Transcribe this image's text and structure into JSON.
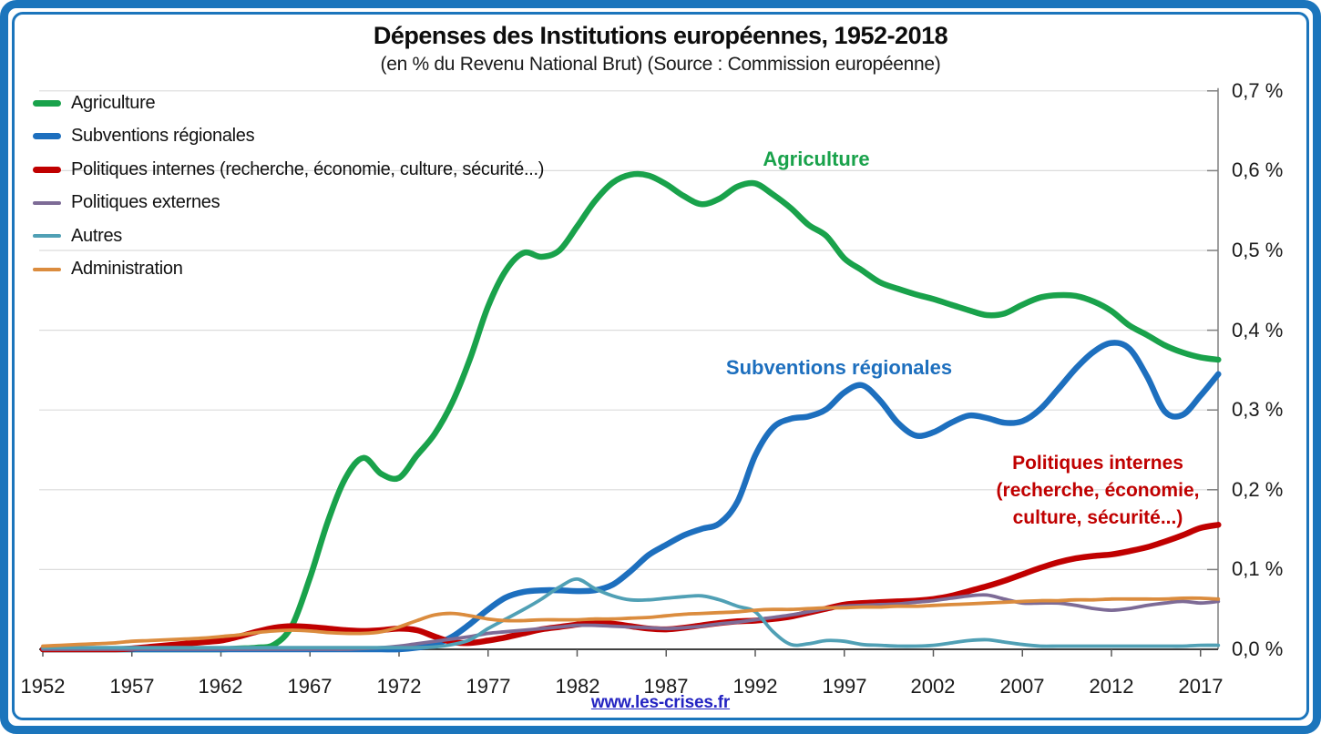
{
  "frame": {
    "border_color": "#1B75BC"
  },
  "header": {
    "title": "Dépenses des Institutions européennes, 1952-2018",
    "subtitle": "(en % du Revenu National Brut) (Source : Commission européenne)"
  },
  "legend": {
    "items": [
      {
        "label": "Agriculture",
        "color": "#19A24B",
        "thick": true
      },
      {
        "label": "Subventions régionales",
        "color": "#1D6FBE",
        "thick": true
      },
      {
        "label": "Politiques internes (recherche, économie, culture, sécurité...)",
        "color": "#C00000",
        "thick": true
      },
      {
        "label": "Politiques externes",
        "color": "#7D6B96",
        "thick": false
      },
      {
        "label": "Autres",
        "color": "#50A0B5",
        "thick": false
      },
      {
        "label": "Administration",
        "color": "#DB8C3E",
        "thick": false
      }
    ]
  },
  "annotations": {
    "agriculture": "Agriculture",
    "subventions": "Subventions régionales",
    "internes_line1": "Politiques internes",
    "internes_line2": "(recherche, économie,",
    "internes_line3": "culture, sécurité...)"
  },
  "footer": {
    "link_text": "www.les-crises.fr"
  },
  "chart_data": {
    "type": "line",
    "title": "Dépenses des Institutions européennes, 1952-2018",
    "subtitle": "(en % du Revenu National Brut) (Source : Commission européenne)",
    "xlabel": "",
    "ylabel": "% du Revenu National Brut",
    "ylim": [
      0,
      0.7
    ],
    "grid": true,
    "legend_position": "top-left",
    "y_axis_side": "right",
    "x_tick_labels": [
      "1952",
      "1957",
      "1962",
      "1967",
      "1972",
      "1977",
      "1982",
      "1987",
      "1992",
      "1997",
      "2002",
      "2007",
      "2012",
      "2017"
    ],
    "y_tick_labels": [
      "0,0 %",
      "0,1 %",
      "0,2 %",
      "0,3 %",
      "0,4 %",
      "0,5 %",
      "0,6 %",
      "0,7 %"
    ],
    "x": [
      1952,
      1953,
      1954,
      1955,
      1956,
      1957,
      1958,
      1959,
      1960,
      1961,
      1962,
      1963,
      1964,
      1965,
      1966,
      1967,
      1968,
      1969,
      1970,
      1971,
      1972,
      1973,
      1974,
      1975,
      1976,
      1977,
      1978,
      1979,
      1980,
      1981,
      1982,
      1983,
      1984,
      1985,
      1986,
      1987,
      1988,
      1989,
      1990,
      1991,
      1992,
      1993,
      1994,
      1995,
      1996,
      1997,
      1998,
      1999,
      2000,
      2001,
      2002,
      2003,
      2004,
      2005,
      2006,
      2007,
      2008,
      2009,
      2010,
      2011,
      2012,
      2013,
      2014,
      2015,
      2016,
      2017,
      2018
    ],
    "series": [
      {
        "id": "agriculture",
        "name": "Agriculture",
        "color": "#19A24B",
        "width": 6.5,
        "values": [
          0,
          0,
          0,
          0,
          0,
          0,
          0,
          0,
          0,
          0,
          0,
          0.001,
          0.002,
          0.006,
          0.03,
          0.09,
          0.16,
          0.215,
          0.24,
          0.22,
          0.215,
          0.243,
          0.27,
          0.31,
          0.365,
          0.43,
          0.475,
          0.497,
          0.492,
          0.5,
          0.53,
          0.562,
          0.585,
          0.595,
          0.594,
          0.583,
          0.568,
          0.558,
          0.565,
          0.58,
          0.584,
          0.57,
          0.553,
          0.532,
          0.518,
          0.49,
          0.475,
          0.46,
          0.452,
          0.445,
          0.439,
          0.432,
          0.425,
          0.419,
          0.421,
          0.432,
          0.441,
          0.444,
          0.443,
          0.436,
          0.424,
          0.406,
          0.394,
          0.381,
          0.372,
          0.366,
          0.363
        ]
      },
      {
        "id": "subventions-regionales",
        "name": "Subventions régionales",
        "color": "#1D6FBE",
        "width": 6.5,
        "values": [
          0,
          0,
          0,
          0,
          0,
          0,
          0,
          0,
          0,
          0,
          0,
          0,
          0,
          0,
          0,
          0,
          0,
          0,
          0,
          0,
          0,
          0.002,
          0.006,
          0.016,
          0.032,
          0.05,
          0.065,
          0.072,
          0.074,
          0.074,
          0.073,
          0.074,
          0.081,
          0.098,
          0.118,
          0.131,
          0.143,
          0.151,
          0.158,
          0.185,
          0.243,
          0.278,
          0.289,
          0.292,
          0.301,
          0.322,
          0.331,
          0.312,
          0.284,
          0.268,
          0.272,
          0.284,
          0.293,
          0.29,
          0.284,
          0.286,
          0.301,
          0.326,
          0.352,
          0.373,
          0.384,
          0.377,
          0.342,
          0.298,
          0.294,
          0.318,
          0.345
        ]
      },
      {
        "id": "politiques-internes",
        "name": "Politiques internes (recherche, économie, culture, sécurité...)",
        "color": "#C00000",
        "width": 6.5,
        "values": [
          0,
          0,
          0,
          0,
          0,
          0.001,
          0.003,
          0.005,
          0.007,
          0.009,
          0.011,
          0.016,
          0.022,
          0.027,
          0.029,
          0.028,
          0.026,
          0.024,
          0.023,
          0.024,
          0.026,
          0.024,
          0.016,
          0.009,
          0.008,
          0.011,
          0.015,
          0.02,
          0.025,
          0.028,
          0.031,
          0.033,
          0.032,
          0.029,
          0.026,
          0.025,
          0.027,
          0.03,
          0.033,
          0.035,
          0.036,
          0.038,
          0.041,
          0.046,
          0.051,
          0.056,
          0.058,
          0.059,
          0.06,
          0.061,
          0.063,
          0.067,
          0.073,
          0.079,
          0.086,
          0.094,
          0.102,
          0.109,
          0.114,
          0.117,
          0.119,
          0.123,
          0.128,
          0.135,
          0.143,
          0.152,
          0.156
        ]
      },
      {
        "id": "politiques-externes",
        "name": "Politiques externes",
        "color": "#7D6B96",
        "width": 3.8,
        "values": [
          0,
          0,
          0,
          0,
          0,
          0,
          0,
          0,
          0,
          0,
          0,
          0,
          0,
          0,
          0,
          0,
          0,
          0,
          0.001,
          0.002,
          0.004,
          0.007,
          0.01,
          0.013,
          0.016,
          0.02,
          0.022,
          0.024,
          0.026,
          0.028,
          0.03,
          0.03,
          0.029,
          0.028,
          0.027,
          0.026,
          0.027,
          0.029,
          0.032,
          0.034,
          0.037,
          0.04,
          0.043,
          0.047,
          0.051,
          0.054,
          0.055,
          0.056,
          0.057,
          0.059,
          0.061,
          0.064,
          0.067,
          0.068,
          0.063,
          0.058,
          0.058,
          0.058,
          0.055,
          0.051,
          0.049,
          0.051,
          0.055,
          0.058,
          0.06,
          0.058,
          0.06
        ]
      },
      {
        "id": "autres",
        "name": "Autres",
        "color": "#50A0B5",
        "width": 3.8,
        "values": [
          0.002,
          0.002,
          0.002,
          0.002,
          0.002,
          0.002,
          0.002,
          0.002,
          0.002,
          0.002,
          0.002,
          0.002,
          0.002,
          0.002,
          0.002,
          0.002,
          0.002,
          0.002,
          0.002,
          0.002,
          0.002,
          0.002,
          0.003,
          0.006,
          0.012,
          0.026,
          0.038,
          0.05,
          0.063,
          0.078,
          0.088,
          0.076,
          0.067,
          0.062,
          0.062,
          0.064,
          0.066,
          0.067,
          0.062,
          0.054,
          0.047,
          0.022,
          0.006,
          0.007,
          0.011,
          0.01,
          0.006,
          0.005,
          0.004,
          0.004,
          0.005,
          0.008,
          0.011,
          0.012,
          0.009,
          0.006,
          0.004,
          0.004,
          0.004,
          0.004,
          0.004,
          0.004,
          0.004,
          0.004,
          0.004,
          0.005,
          0.005
        ]
      },
      {
        "id": "administration",
        "name": "Administration",
        "color": "#DB8C3E",
        "width": 3.8,
        "values": [
          0.004,
          0.005,
          0.006,
          0.007,
          0.008,
          0.01,
          0.011,
          0.012,
          0.013,
          0.014,
          0.016,
          0.018,
          0.021,
          0.023,
          0.024,
          0.023,
          0.021,
          0.02,
          0.02,
          0.022,
          0.028,
          0.036,
          0.043,
          0.045,
          0.042,
          0.038,
          0.036,
          0.036,
          0.037,
          0.037,
          0.037,
          0.038,
          0.038,
          0.039,
          0.04,
          0.042,
          0.044,
          0.045,
          0.046,
          0.047,
          0.049,
          0.05,
          0.05,
          0.051,
          0.052,
          0.052,
          0.053,
          0.053,
          0.054,
          0.054,
          0.055,
          0.056,
          0.057,
          0.058,
          0.059,
          0.06,
          0.061,
          0.061,
          0.062,
          0.062,
          0.063,
          0.063,
          0.063,
          0.063,
          0.064,
          0.064,
          0.063
        ]
      }
    ]
  }
}
